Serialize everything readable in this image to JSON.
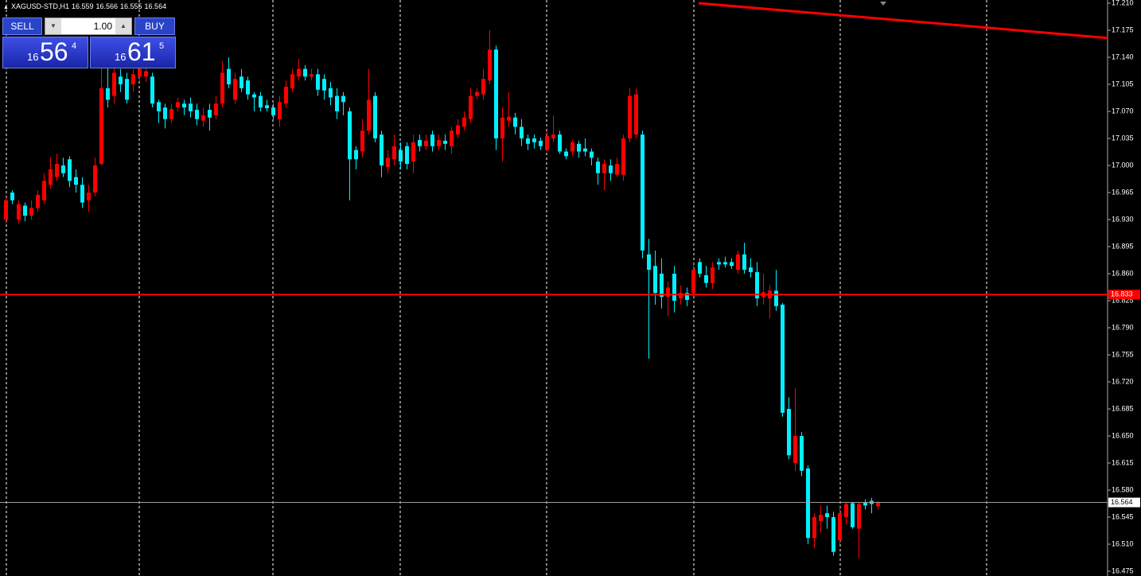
{
  "chart_data": {
    "type": "candlestick",
    "title": "XAGUSD-STD,H1",
    "open": [
      16.93,
      16.965,
      16.93,
      16.948,
      16.935,
      16.945,
      16.955,
      16.975,
      16.985,
      17.0,
      17.008,
      16.985,
      16.975,
      16.955,
      16.965,
      17.002,
      17.1,
      17.09,
      17.115,
      17.112,
      17.105,
      17.115,
      17.115,
      17.115,
      17.082,
      17.075,
      17.06,
      17.075,
      17.08,
      17.08,
      17.072,
      17.058,
      17.072,
      17.065,
      17.08,
      17.125,
      17.085,
      17.115,
      17.11,
      17.092,
      17.09,
      17.078,
      17.075,
      17.06,
      17.08,
      17.1,
      17.115,
      17.125,
      17.115,
      17.118,
      17.112,
      17.1,
      17.09,
      17.09,
      17.07,
      17.02,
      17.018,
      17.045,
      17.09,
      17.04,
      16.998,
      17.008,
      17.02,
      17.025,
      17.005,
      17.033,
      17.025,
      17.04,
      17.025,
      17.032,
      17.025,
      17.04,
      17.05,
      17.06,
      17.09,
      17.092,
      17.11,
      17.15,
      17.035,
      17.058,
      17.062,
      17.05,
      17.035,
      17.035,
      17.032,
      17.02,
      17.035,
      17.04,
      17.018,
      17.018,
      17.028,
      17.022,
      17.018,
      17.005,
      16.99,
      17.0,
      16.988,
      16.988,
      17.035,
      17.04,
      17.04,
      16.885,
      16.87,
      16.86,
      16.83,
      16.86,
      16.828,
      16.835,
      16.835,
      16.875,
      16.858,
      16.848,
      16.875,
      16.875,
      16.875,
      16.865,
      16.885,
      16.868,
      16.862,
      16.83,
      16.828,
      16.838,
      16.82,
      16.685,
      16.615,
      16.65,
      16.608,
      16.518,
      16.54,
      16.55,
      16.545,
      16.515,
      16.545,
      16.563,
      16.53,
      16.564,
      16.566,
      16.559
    ],
    "high": [
      16.96,
      16.968,
      16.955,
      16.952,
      16.955,
      16.968,
      16.99,
      17.01,
      17.015,
      17.01,
      17.012,
      16.995,
      16.985,
      16.975,
      17.01,
      17.13,
      17.13,
      17.13,
      17.125,
      17.12,
      17.125,
      17.13,
      17.13,
      17.12,
      17.085,
      17.08,
      17.08,
      17.088,
      17.085,
      17.088,
      17.08,
      17.075,
      17.08,
      17.09,
      17.135,
      17.14,
      17.12,
      17.125,
      17.115,
      17.095,
      17.095,
      17.085,
      17.08,
      17.09,
      17.11,
      17.125,
      17.138,
      17.13,
      17.125,
      17.125,
      17.118,
      17.108,
      17.1,
      17.095,
      17.075,
      17.025,
      17.06,
      17.125,
      17.095,
      17.045,
      17.02,
      17.04,
      17.03,
      17.03,
      17.04,
      17.04,
      17.04,
      17.045,
      17.04,
      17.04,
      17.05,
      17.06,
      17.07,
      17.1,
      17.1,
      17.125,
      17.175,
      17.155,
      17.075,
      17.095,
      17.068,
      17.06,
      17.04,
      17.04,
      17.036,
      17.045,
      17.065,
      17.045,
      17.022,
      17.033,
      17.032,
      17.035,
      17.022,
      17.01,
      17.008,
      17.008,
      17.01,
      17.04,
      17.1,
      17.1,
      17.045,
      16.905,
      16.89,
      16.88,
      16.85,
      16.87,
      16.845,
      16.842,
      16.875,
      16.88,
      16.87,
      16.875,
      16.88,
      16.882,
      16.88,
      16.89,
      16.9,
      16.88,
      16.875,
      16.86,
      16.845,
      16.865,
      16.822,
      16.7,
      16.712,
      16.655,
      16.612,
      16.55,
      16.56,
      16.56,
      16.552,
      16.558,
      16.565,
      16.565,
      16.565,
      16.568,
      16.57,
      16.566
    ],
    "low": [
      16.925,
      16.95,
      16.925,
      16.928,
      16.93,
      16.94,
      16.95,
      16.97,
      16.98,
      16.985,
      16.972,
      16.965,
      16.945,
      16.94,
      16.96,
      17.0,
      17.075,
      17.08,
      17.095,
      17.08,
      17.095,
      17.108,
      17.108,
      17.075,
      17.055,
      17.048,
      17.055,
      17.07,
      17.065,
      17.062,
      17.052,
      17.05,
      17.045,
      17.06,
      17.075,
      17.1,
      17.08,
      17.095,
      17.085,
      17.07,
      17.07,
      17.07,
      17.06,
      17.05,
      17.075,
      17.095,
      17.11,
      17.11,
      17.11,
      17.09,
      17.085,
      17.078,
      17.06,
      17.065,
      16.955,
      16.995,
      17.01,
      17.04,
      17.03,
      16.985,
      16.99,
      17.0,
      16.995,
      16.995,
      16.99,
      17.018,
      17.02,
      17.018,
      17.02,
      17.02,
      17.015,
      17.035,
      17.045,
      17.055,
      17.085,
      17.085,
      17.105,
      17.02,
      17.005,
      17.05,
      17.04,
      17.025,
      17.02,
      17.022,
      17.02,
      17.018,
      17.03,
      17.015,
      17.008,
      17.012,
      17.01,
      17.012,
      17.0,
      16.975,
      16.968,
      16.98,
      16.985,
      16.98,
      17.03,
      17.035,
      16.88,
      16.75,
      16.82,
      16.815,
      16.805,
      16.81,
      16.82,
      16.818,
      16.83,
      16.855,
      16.842,
      16.84,
      16.865,
      16.868,
      16.866,
      16.86,
      16.86,
      16.855,
      16.818,
      16.82,
      16.802,
      16.812,
      16.675,
      16.62,
      16.605,
      16.598,
      16.51,
      16.505,
      16.525,
      16.53,
      16.495,
      16.51,
      16.535,
      16.53,
      16.492,
      16.555,
      16.55,
      16.555
    ],
    "close": [
      16.955,
      16.955,
      16.95,
      16.935,
      16.945,
      16.962,
      16.98,
      16.995,
      17.002,
      16.99,
      16.98,
      16.975,
      16.952,
      16.965,
      17.0,
      17.1,
      17.085,
      17.12,
      17.105,
      17.085,
      17.118,
      17.125,
      17.122,
      17.08,
      17.07,
      17.06,
      17.073,
      17.082,
      17.075,
      17.07,
      17.06,
      17.065,
      17.062,
      17.08,
      17.12,
      17.105,
      17.112,
      17.1,
      17.092,
      17.088,
      17.075,
      17.074,
      17.065,
      17.082,
      17.102,
      17.118,
      17.125,
      17.115,
      17.118,
      17.098,
      17.097,
      17.088,
      17.07,
      17.082,
      17.008,
      17.008,
      17.045,
      17.085,
      17.035,
      17.0,
      17.01,
      17.025,
      17.005,
      17.002,
      17.03,
      17.025,
      17.032,
      17.025,
      17.033,
      17.028,
      17.045,
      17.052,
      17.062,
      17.09,
      17.095,
      17.112,
      17.15,
      17.035,
      17.062,
      17.063,
      17.05,
      17.035,
      17.028,
      17.03,
      17.025,
      17.038,
      17.04,
      17.018,
      17.012,
      17.03,
      17.018,
      17.018,
      17.01,
      16.99,
      17.002,
      16.99,
      17.002,
      17.035,
      17.09,
      17.092,
      16.89,
      16.865,
      16.835,
      16.83,
      16.842,
      16.825,
      16.835,
      16.826,
      16.865,
      16.86,
      16.848,
      16.868,
      16.872,
      16.872,
      16.87,
      16.885,
      16.865,
      16.862,
      16.828,
      16.836,
      16.838,
      16.818,
      16.68,
      16.625,
      16.65,
      16.605,
      16.518,
      16.545,
      16.548,
      16.545,
      16.5,
      16.55,
      16.562,
      16.532,
      16.562,
      16.56,
      16.562,
      16.564
    ],
    "up_color": "#ff0000",
    "down_color": "#00f0ff",
    "ylim": [
      16.475,
      17.21
    ],
    "yticks": [
      {
        "value": 17.21,
        "label": "17.210"
      },
      17.175,
      {
        "value": 17.14,
        "label": "17.140"
      },
      17.105,
      {
        "value": 17.07,
        "label": "17.070"
      },
      17.035,
      {
        "value": 17.0,
        "label": "17.000"
      },
      16.965,
      {
        "value": 16.93,
        "label": "16.930"
      },
      16.895,
      {
        "value": 16.86,
        "label": "16.860"
      },
      16.825,
      {
        "value": 16.79,
        "label": "16.790"
      },
      16.755,
      {
        "value": 16.72,
        "label": "16.720"
      },
      16.685,
      {
        "value": 16.65,
        "label": "16.650"
      },
      16.615,
      {
        "value": 16.58,
        "label": "16.580"
      },
      16.545,
      {
        "value": 16.51,
        "label": "16.510"
      },
      16.475
    ],
    "hline": {
      "value": 16.833,
      "color": "#ff0000"
    },
    "bid": 16.564,
    "trendline": {
      "values": [
        17.21,
        17.165
      ],
      "color": "#ff0000"
    }
  },
  "trade_panel": {
    "sell": "SELL",
    "buy": "BUY",
    "lot": "1.00",
    "bid_price": {
      "big": "16",
      "pips": "56",
      "point": "4"
    },
    "ask_price": {
      "big": "16",
      "pips": "61",
      "point": "5"
    }
  }
}
